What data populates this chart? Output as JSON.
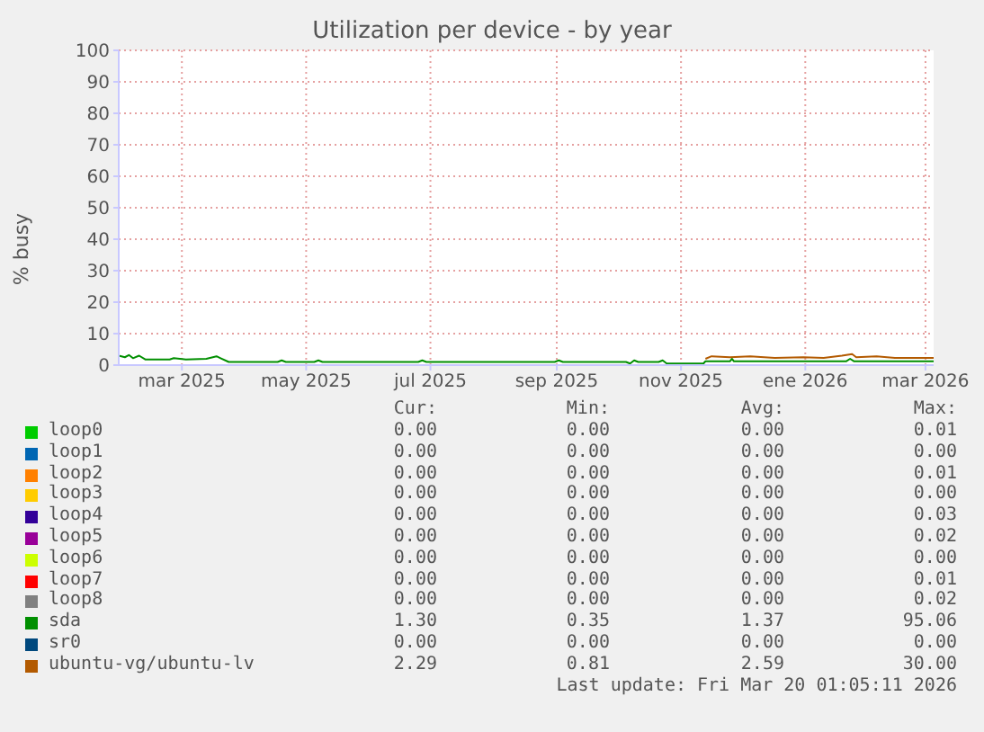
{
  "chart_data": {
    "type": "line",
    "title": "Utilization per device - by year",
    "ylabel": "% busy",
    "xlim": [
      "2025-02-13",
      "2026-03-20"
    ],
    "xticks": [
      {
        "value": "2025-03-16",
        "label": "mar 2025"
      },
      {
        "value": "2025-05-16",
        "label": "may 2025"
      },
      {
        "value": "2025-07-16",
        "label": "jul 2025"
      },
      {
        "value": "2025-09-16",
        "label": "sep 2025"
      },
      {
        "value": "2025-11-16",
        "label": "nov 2025"
      },
      {
        "value": "2026-01-16",
        "label": "ene 2026"
      },
      {
        "value": "2026-03-16",
        "label": "mar 2026"
      }
    ],
    "ylim": [
      0,
      100
    ],
    "yticks": [
      0,
      10,
      20,
      30,
      40,
      50,
      60,
      70,
      80,
      90,
      100
    ],
    "grid": true,
    "legend": "bottom",
    "marker": "none",
    "line_style": "solid",
    "series": [
      {
        "name": "loop0",
        "color": "#00cc00",
        "x": [
          "2025-02-13",
          "2026-03-20"
        ],
        "values": [
          0,
          0
        ]
      },
      {
        "name": "loop1",
        "color": "#0066b3"
      },
      {
        "name": "loop2",
        "color": "#ff8000"
      },
      {
        "name": "loop3",
        "color": "#ffcc00"
      },
      {
        "name": "loop4",
        "color": "#330099"
      },
      {
        "name": "loop5",
        "color": "#990099"
      },
      {
        "name": "loop6",
        "color": "#ccff00"
      },
      {
        "name": "loop7",
        "color": "#ff0000"
      },
      {
        "name": "loop8",
        "color": "#808080"
      },
      {
        "name": "sda",
        "color": "#008f00",
        "x": [
          "2025-02-13",
          "2025-02-16",
          "2025-02-18",
          "2025-02-20",
          "2025-02-23",
          "2025-02-26",
          "2025-03-10",
          "2025-03-12",
          "2025-03-18",
          "2025-03-28",
          "2025-04-02",
          "2025-04-04",
          "2025-04-08",
          "2025-05-02",
          "2025-05-04",
          "2025-05-06",
          "2025-05-20",
          "2025-05-22",
          "2025-05-24",
          "2025-07-10",
          "2025-07-12",
          "2025-07-14",
          "2025-09-15",
          "2025-09-17",
          "2025-09-19",
          "2025-10-20",
          "2025-10-22",
          "2025-10-24",
          "2025-10-26",
          "2025-11-05",
          "2025-11-07",
          "2025-11-09",
          "2025-11-27",
          "2025-11-28",
          "2025-12-10",
          "2025-12-11",
          "2025-12-12",
          "2026-02-05",
          "2026-02-07",
          "2026-02-09",
          "2026-03-20"
        ],
        "values": [
          3,
          2.5,
          3.2,
          2.2,
          3,
          1.8,
          1.8,
          2.2,
          1.8,
          2,
          2.8,
          2.2,
          1,
          1,
          1.5,
          1,
          1,
          1.5,
          1,
          1,
          1.5,
          1,
          1,
          1.5,
          1,
          1,
          0.5,
          1.5,
          1,
          1,
          1.5,
          0.5,
          0.5,
          1.2,
          1.2,
          2,
          1.2,
          1.2,
          2,
          1.2,
          1.2
        ]
      },
      {
        "name": "sr0",
        "color": "#00487d"
      },
      {
        "name": "ubuntu-vg/ubuntu-lv",
        "color": "#b35a00",
        "x": [
          "2025-11-28",
          "2025-12-01",
          "2025-12-10",
          "2025-12-20",
          "2026-01-01",
          "2026-01-15",
          "2026-01-25",
          "2026-02-03",
          "2026-02-08",
          "2026-02-10",
          "2026-02-20",
          "2026-03-01",
          "2026-03-20"
        ],
        "values": [
          2,
          2.8,
          2.5,
          2.8,
          2.3,
          2.5,
          2.3,
          3,
          3.5,
          2.5,
          2.8,
          2.3,
          2.3
        ]
      }
    ],
    "annotations": [
      "Cur:",
      "Min:",
      "Avg:",
      "Max:",
      "0.00",
      "0.00",
      "0.00",
      "0.01",
      "0.00",
      "0.00",
      "0.00",
      "0.00",
      "0.00",
      "0.00",
      "0.00",
      "0.01",
      "0.00",
      "0.00",
      "0.00",
      "0.00",
      "0.00",
      "0.00",
      "0.00",
      "0.03",
      "0.00",
      "0.00",
      "0.00",
      "0.02",
      "0.00",
      "0.00",
      "0.00",
      "0.00",
      "0.00",
      "0.00",
      "0.00",
      "0.01",
      "0.00",
      "0.00",
      "0.00",
      "0.02",
      "1.30",
      "0.35",
      "1.37",
      "95.06",
      "0.00",
      "0.00",
      "0.00",
      "0.00",
      "2.29",
      "0.81",
      "2.59",
      "30.00",
      "Last update: Fri Mar 20 01:05:11 2026"
    ]
  }
}
